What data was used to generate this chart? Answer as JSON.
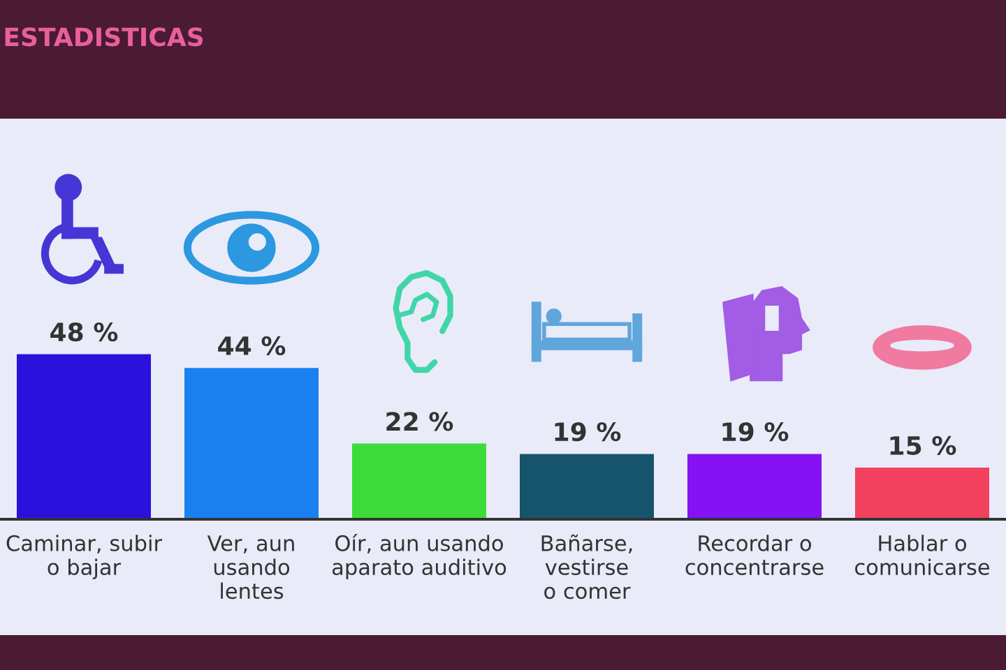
{
  "chart_data": {
    "type": "bar",
    "title": "ESTADISTICAS",
    "categories": [
      "Caminar, subir\no bajar",
      "Ver, aun\nusando\nlentes",
      "Oír, aun usando\naparato auditivo",
      "Bañarse,\nvestirse\no comer",
      "Recordar o\nconcentrarse",
      "Hablar o\ncomunicarse"
    ],
    "values": [
      48,
      44,
      22,
      19,
      19,
      15
    ],
    "value_labels": [
      "48 %",
      "44 %",
      "22 %",
      "19 %",
      "19 %",
      "15 %"
    ],
    "colors": [
      "#2a12dc",
      "#1a80f0",
      "#3ddc3a",
      "#16546c",
      "#8412f2",
      "#f2405e"
    ],
    "tick_labels": "x"
  }
}
